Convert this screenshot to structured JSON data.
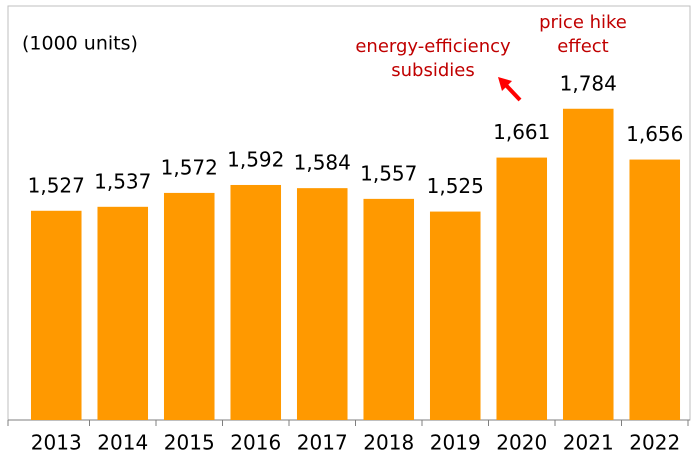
{
  "chart_data": {
    "type": "bar",
    "unit_label": "(1000 units)",
    "categories": [
      "2013",
      "2014",
      "2015",
      "2016",
      "2017",
      "2018",
      "2019",
      "2020",
      "2021",
      "2022"
    ],
    "values": [
      1527,
      1537,
      1572,
      1592,
      1584,
      1557,
      1525,
      1661,
      1784,
      1656
    ],
    "value_labels": [
      "1,527",
      "1,537",
      "1,572",
      "1,592",
      "1,584",
      "1,557",
      "1,525",
      "1,661",
      "1,784",
      "1,656"
    ],
    "color": "#ff9900",
    "ylim": [
      1000,
      2000
    ],
    "annotations": [
      {
        "lines": [
          "energy-efficiency",
          "subsidies"
        ],
        "color": "#c00000"
      },
      {
        "lines": [
          "price hike",
          "effect"
        ],
        "color": "#c00000"
      }
    ]
  }
}
